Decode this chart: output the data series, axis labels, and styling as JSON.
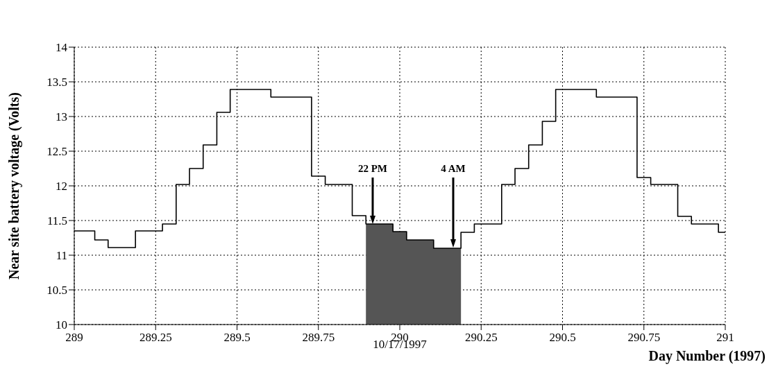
{
  "chart_data": {
    "type": "step",
    "xlabel": "Day Number (1997)",
    "ylabel": "Near site battery voltage (Volts)",
    "xlim": [
      289,
      291
    ],
    "xticks": [
      289,
      289.25,
      289.5,
      289.75,
      290,
      290.25,
      290.5,
      290.75,
      291
    ],
    "ylim": [
      10,
      14
    ],
    "yticks": [
      10,
      10.5,
      11,
      11.5,
      12,
      12.5,
      13,
      13.5,
      14
    ],
    "grid": true,
    "series": [
      {
        "type": "step",
        "color": "#000000",
        "x": [
          289,
          289.063,
          289.104,
          289.188,
          289.271,
          289.313,
          289.354,
          289.396,
          289.438,
          289.479,
          289.604,
          289.729,
          289.771,
          289.854,
          289.896,
          289.979,
          290.021,
          290.104,
          290.188,
          290.229,
          290.313,
          290.354,
          290.396,
          290.438,
          290.479,
          290.604,
          290.729,
          290.771,
          290.854,
          290.896,
          290.979,
          291
        ],
        "values": [
          11.35,
          11.22,
          11.11,
          11.35,
          11.45,
          12.02,
          12.25,
          12.59,
          13.06,
          13.39,
          13.28,
          12.14,
          12.02,
          11.57,
          11.45,
          11.34,
          11.22,
          11.1,
          11.33,
          11.45,
          12.02,
          12.25,
          12.59,
          12.93,
          13.39,
          13.28,
          12.12,
          12.02,
          11.56,
          11.45,
          11.33,
          11.33
        ]
      },
      {
        "type": "area",
        "color": "#555555",
        "x": [
          289.896,
          289.979,
          290.021,
          290.104,
          290.188
        ],
        "values": [
          11.45,
          11.34,
          11.22,
          11.1,
          11.1
        ]
      }
    ],
    "annotations": [
      "22 PM",
      "4 AM",
      "10/17/1997"
    ]
  }
}
